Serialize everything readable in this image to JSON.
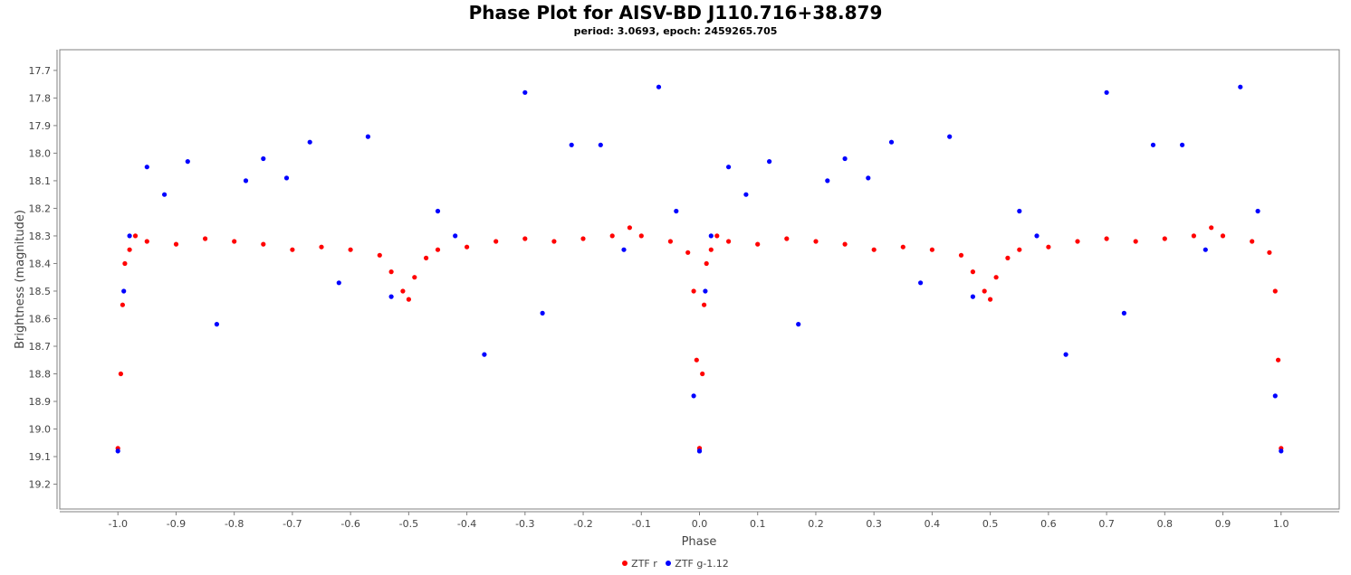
{
  "chart_data": {
    "type": "scatter",
    "title": "Phase Plot for AISV-BD J110.716+38.879",
    "subtitle": "period: 3.0693, epoch: 2459265.705",
    "xlabel": "Phase",
    "ylabel": "Brightness (magnitude)",
    "xlim": [
      -1.1,
      1.1
    ],
    "ylim": [
      17.625,
      19.29
    ],
    "y_inverted": true,
    "x_ticks": [
      "-1.0",
      "-0.9",
      "-0.8",
      "-0.7",
      "-0.6",
      "-0.5",
      "-0.4",
      "-0.3",
      "-0.2",
      "-0.1",
      "0.0",
      "0.1",
      "0.2",
      "0.3",
      "0.4",
      "0.5",
      "0.6",
      "0.7",
      "0.8",
      "0.9",
      "1.0"
    ],
    "y_ticks": [
      "17.7",
      "17.8",
      "17.9",
      "18.0",
      "18.1",
      "18.2",
      "18.3",
      "18.4",
      "18.5",
      "18.6",
      "18.7",
      "18.8",
      "18.9",
      "19.0",
      "19.1",
      "19.2"
    ],
    "grid": false,
    "legend_position": "bottom-center",
    "series": [
      {
        "name": "ZTF r",
        "color": "#ff0000",
        "x": [
          0.0,
          0.005,
          0.008,
          0.012,
          0.02,
          0.03,
          0.05,
          0.1,
          0.15,
          0.2,
          0.25,
          0.3,
          0.35,
          0.4,
          0.45,
          0.47,
          0.49,
          0.5,
          0.51,
          0.53,
          0.55,
          0.6,
          0.65,
          0.7,
          0.75,
          0.8,
          0.85,
          0.88,
          0.9,
          0.95,
          0.98,
          0.99,
          0.995,
          1.0
        ],
        "y": [
          19.07,
          18.8,
          18.55,
          18.4,
          18.35,
          18.3,
          18.32,
          18.33,
          18.31,
          18.32,
          18.33,
          18.35,
          18.34,
          18.35,
          18.37,
          18.43,
          18.5,
          18.53,
          18.45,
          18.38,
          18.35,
          18.34,
          18.32,
          18.31,
          18.32,
          18.31,
          18.3,
          18.27,
          18.3,
          18.32,
          18.36,
          18.5,
          18.75,
          19.07
        ]
      },
      {
        "name": "ZTF g-1.12",
        "color": "#0000ff",
        "x": [
          0.0,
          0.01,
          0.02,
          0.05,
          0.08,
          0.12,
          0.17,
          0.22,
          0.25,
          0.29,
          0.33,
          0.38,
          0.43,
          0.47,
          0.55,
          0.58,
          0.63,
          0.7,
          0.73,
          0.78,
          0.83,
          0.87,
          0.93,
          0.96,
          0.99,
          1.0
        ],
        "y": [
          19.08,
          18.5,
          18.3,
          18.05,
          18.15,
          18.03,
          18.62,
          18.1,
          18.02,
          18.09,
          17.96,
          18.47,
          17.94,
          18.52,
          18.21,
          18.3,
          18.73,
          17.78,
          18.58,
          17.97,
          17.97,
          18.35,
          17.76,
          18.21,
          18.88,
          19.08
        ]
      }
    ]
  },
  "legend": {
    "items": [
      {
        "label": "ZTF r",
        "color": "#ff0000"
      },
      {
        "label": "ZTF g-1.12",
        "color": "#0000ff"
      }
    ]
  }
}
